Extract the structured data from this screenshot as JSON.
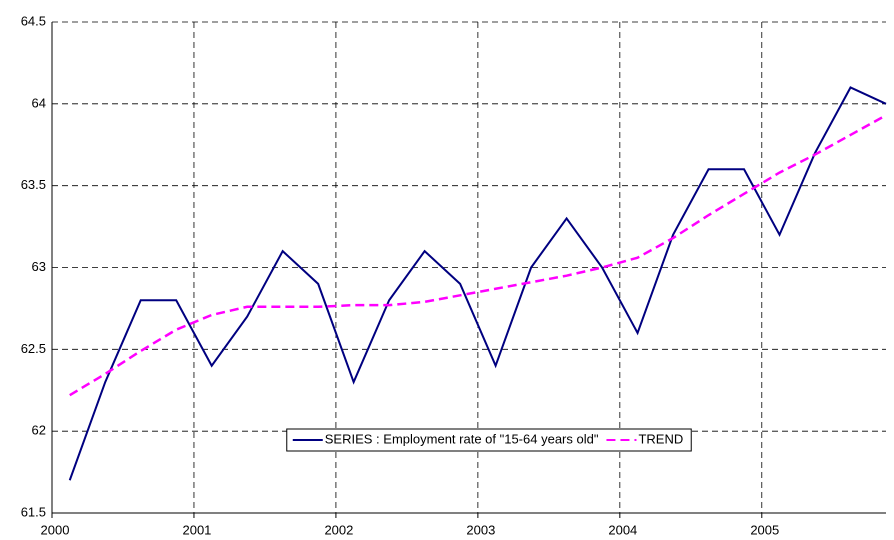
{
  "chart_data": {
    "type": "line",
    "x": [
      2000.125,
      2000.375,
      2000.625,
      2000.875,
      2001.125,
      2001.375,
      2001.625,
      2001.875,
      2002.125,
      2002.375,
      2002.625,
      2002.875,
      2003.125,
      2003.375,
      2003.625,
      2003.875,
      2004.125,
      2004.375,
      2004.625,
      2004.875,
      2005.125,
      2005.375,
      2005.625,
      2005.875
    ],
    "series": [
      {
        "name": "SERIES : Employment rate of \"15-64 years old\"",
        "color": "#000080",
        "dashed": false,
        "values": [
          61.7,
          62.3,
          62.8,
          62.8,
          62.4,
          62.7,
          63.1,
          62.9,
          62.3,
          62.8,
          63.1,
          62.9,
          62.4,
          63.0,
          63.3,
          63.0,
          62.6,
          63.2,
          63.6,
          63.6,
          63.2,
          63.7,
          64.1,
          64.0
        ]
      },
      {
        "name": "TREND",
        "color": "#ff00ff",
        "dashed": true,
        "values": [
          62.22,
          62.35,
          62.49,
          62.62,
          62.71,
          62.76,
          62.76,
          62.76,
          62.77,
          62.77,
          62.79,
          62.83,
          62.87,
          62.91,
          62.95,
          63.0,
          63.06,
          63.18,
          63.32,
          63.45,
          63.58,
          63.69,
          63.81,
          63.93
        ]
      }
    ],
    "xlim": [
      2000,
      2005.875
    ],
    "xticks": [
      2000,
      2001,
      2002,
      2003,
      2004,
      2005
    ],
    "ylim": [
      61.5,
      64.5
    ],
    "yticks": [
      61.5,
      62,
      62.5,
      63,
      63.5,
      64,
      64.5
    ],
    "grid": true
  }
}
